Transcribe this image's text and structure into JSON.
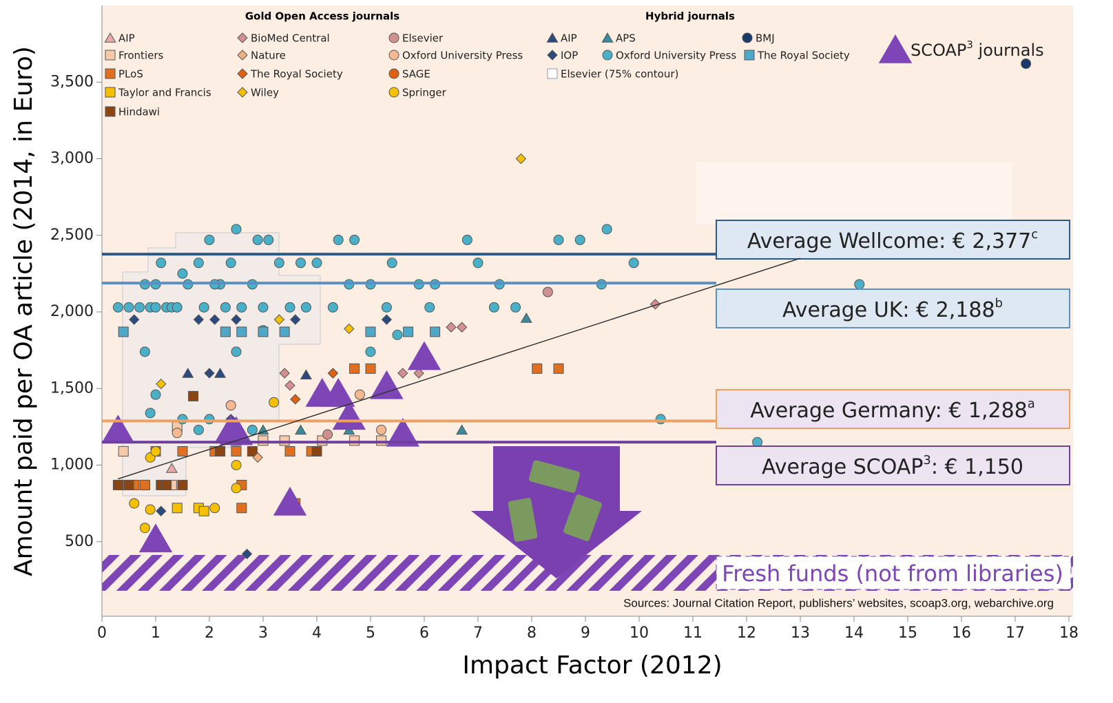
{
  "chart_data": {
    "type": "scatter",
    "y_label": "Amount paid per OA article (2014, in Euro)",
    "x_label": "Impact Factor (2012)",
    "xlim": [
      0,
      18
    ],
    "xticks": [
      0,
      1,
      2,
      3,
      4,
      5,
      6,
      7,
      8,
      9,
      10,
      11,
      12,
      13,
      14,
      15,
      16,
      17,
      18
    ],
    "ylim": [
      0,
      4000
    ],
    "yticks": [
      500,
      {
        "value": 1000,
        "label": "1,000"
      },
      {
        "value": 1500,
        "label": "1,500"
      },
      {
        "value": 2000,
        "label": "2,000"
      },
      {
        "value": 2500,
        "label": "2,500"
      },
      {
        "value": 3000,
        "label": "3,000"
      },
      {
        "value": 3500,
        "label": "3,500"
      }
    ],
    "legend_groups": [
      "Gold Open Access journals",
      "Hybrid journals"
    ],
    "series": [
      {
        "name": "AIP",
        "marker": "triangle",
        "color": "#e8a8a8",
        "x": [
          1.3
        ],
        "y": [
          980
        ]
      },
      {
        "name": "Frontiers",
        "marker": "square",
        "color": "#f6c9a8",
        "x": [
          0.4,
          1.4,
          2.5,
          3.0,
          3.4,
          4.1,
          4.7,
          5.2,
          0.8,
          1.3
        ],
        "y": [
          1090,
          1250,
          1160,
          1160,
          1160,
          1160,
          1160,
          1160,
          870,
          870
        ]
      },
      {
        "name": "PLoS",
        "marker": "square",
        "color": "#e07020",
        "x": [
          0.4,
          0.6,
          0.8,
          1.0,
          1.5,
          2.1,
          2.5,
          3.5,
          3.9,
          4.7,
          5.0,
          8.1,
          8.5,
          3.6,
          2.6,
          2.6
        ],
        "y": [
          870,
          870,
          870,
          1090,
          1090,
          1090,
          1090,
          1090,
          1090,
          1630,
          1630,
          1630,
          1630,
          750,
          720,
          870
        ]
      },
      {
        "name": "Taylor and Francis",
        "marker": "square",
        "color": "#f5c000",
        "x": [
          1.4,
          1.8,
          1.9
        ],
        "y": [
          720,
          720,
          700
        ]
      },
      {
        "name": "Hindawi",
        "marker": "square",
        "color": "#8b4513",
        "x": [
          0.3,
          0.5,
          1.1,
          1.2,
          1.5,
          1.7,
          2.2,
          2.8,
          4.0
        ],
        "y": [
          870,
          870,
          870,
          870,
          870,
          1450,
          1090,
          1090,
          1090
        ]
      },
      {
        "name": "BioMed Central",
        "marker": "diamond",
        "color": "#d49090",
        "x": [
          3.4,
          4.3,
          5.6,
          5.9,
          6.5,
          6.7,
          10.3,
          3.5
        ],
        "y": [
          1600,
          1600,
          1600,
          1600,
          1900,
          1900,
          2050,
          1520
        ]
      },
      {
        "name": "Nature",
        "marker": "diamond",
        "color": "#f0b080",
        "x": [
          2.9
        ],
        "y": [
          1050
        ]
      },
      {
        "name": "The Royal Society",
        "marker": "diamond",
        "color": "#e06010",
        "x": [
          3.6,
          4.3
        ],
        "y": [
          1430,
          1600
        ]
      },
      {
        "name": "Wiley",
        "marker": "diamond",
        "color": "#f5c000",
        "x": [
          1.1,
          3.3,
          4.6,
          7.8
        ],
        "y": [
          1530,
          1950,
          1890,
          3000
        ]
      },
      {
        "name": "Elsevier",
        "marker": "circle",
        "color": "#d09090",
        "x": [
          8.3,
          4.2
        ],
        "y": [
          2130,
          1200
        ]
      },
      {
        "name": "Oxford University Press",
        "marker": "circle",
        "color": "#f5b890",
        "x": [
          2.4,
          4.8,
          1.4,
          5.2
        ],
        "y": [
          1390,
          1460,
          1210,
          1230
        ]
      },
      {
        "name": "SAGE",
        "marker": "circle",
        "color": "#e06010",
        "x": [],
        "y": []
      },
      {
        "name": "Springer",
        "marker": "circle",
        "color": "#f5c000",
        "x": [
          0.6,
          0.8,
          0.9,
          0.9,
          1.0,
          2.1,
          2.5,
          2.5,
          3.2
        ],
        "y": [
          750,
          590,
          710,
          1050,
          1090,
          720,
          1000,
          850,
          1410
        ]
      },
      {
        "name": "AIP",
        "marker": "triangle",
        "color": "#2a4a80",
        "x": [
          1.6,
          2.2,
          3.8
        ],
        "y": [
          1600,
          1600,
          1590
        ]
      },
      {
        "name": "IOP",
        "marker": "diamond",
        "color": "#2a4a80",
        "x": [
          0.6,
          1.1,
          1.8,
          2.0,
          2.1,
          2.4,
          2.5,
          3.6,
          5.3,
          2.7
        ],
        "y": [
          1950,
          700,
          1950,
          1600,
          1950,
          1300,
          1950,
          1950,
          1950,
          420
        ]
      },
      {
        "name": "Elsevier (75% contour)",
        "marker": "contour",
        "color": "#8a9ab0",
        "x": [],
        "y": []
      },
      {
        "name": "APS",
        "marker": "triangle",
        "color": "#3a8a9a",
        "x": [
          3.0,
          3.7,
          4.6,
          6.7,
          7.9
        ],
        "y": [
          1230,
          1230,
          1230,
          1230,
          1960
        ]
      },
      {
        "name": "Oxford University Press",
        "marker": "circle",
        "color": "#4ab0c8",
        "x": [
          0.3,
          0.5,
          0.7,
          0.8,
          0.9,
          1.0,
          1.0,
          1.1,
          1.2,
          1.3,
          0.8,
          1.0,
          1.4,
          1.5,
          1.6,
          1.8,
          1.9,
          2.0,
          2.2,
          2.3,
          2.4,
          2.5,
          2.6,
          2.8,
          2.9,
          3.0,
          3.1,
          3.3,
          3.5,
          3.7,
          3.8,
          4.0,
          4.3,
          4.4,
          4.6,
          4.7,
          5.0,
          5.3,
          5.4,
          5.5,
          5.9,
          6.2,
          6.8,
          7.0,
          7.3,
          7.4,
          7.7,
          8.5,
          8.9,
          9.3,
          9.4,
          9.9,
          10.4,
          12.2,
          14.1,
          2.0,
          1.5,
          2.5,
          3.0,
          5.0,
          2.8,
          0.9,
          1.8,
          6.1,
          2.1
        ],
        "y": [
          2030,
          2030,
          2030,
          2180,
          2030,
          2030,
          2180,
          2320,
          2030,
          2030,
          1740,
          1460,
          2030,
          2250,
          2180,
          2320,
          2030,
          2470,
          2180,
          2030,
          2320,
          2540,
          2030,
          2180,
          2470,
          2030,
          2470,
          2320,
          2030,
          2320,
          2030,
          2320,
          2030,
          2470,
          2180,
          2470,
          2180,
          2030,
          2320,
          1850,
          2180,
          2180,
          2470,
          2320,
          2030,
          2180,
          2030,
          2470,
          2470,
          2180,
          2540,
          2320,
          1300,
          1150,
          2180,
          1300,
          1300,
          1740,
          1880,
          1740,
          1230,
          1340,
          1230,
          2030,
          2180
        ]
      },
      {
        "name": "BMJ",
        "marker": "circle",
        "color": "#1a3a6a",
        "x": [
          17.2
        ],
        "y": [
          3620
        ]
      },
      {
        "name": "The Royal Society",
        "marker": "square",
        "color": "#50a8c8",
        "x": [
          0.4,
          2.3,
          2.6,
          3.0,
          3.4,
          5.0,
          5.7,
          6.2
        ],
        "y": [
          1870,
          1870,
          1870,
          1870,
          1870,
          1870,
          1870,
          1870
        ]
      },
      {
        "name_parts": [
          "SCOAP",
          "3",
          " journals"
        ],
        "marker": "big-triangle",
        "color": "#7d45b5",
        "x": [
          0.3,
          1.0,
          2.4,
          2.5,
          3.5,
          4.1,
          4.4,
          4.6,
          5.3,
          5.6,
          6.0
        ],
        "y": [
          1230,
          520,
          1230,
          1220,
          760,
          1470,
          1470,
          1320,
          1520,
          1210,
          1710
        ]
      }
    ],
    "trend_line": {
      "x": [
        0.3,
        13
      ],
      "y": [
        910,
        2350
      ]
    },
    "reference_lines": [
      {
        "value": 2377,
        "color": "#2a5a8a",
        "label_parts": [
          "Average Wellcome: € 2,377",
          "c"
        ]
      },
      {
        "value": 2188,
        "color": "#5a90c8",
        "label_parts": [
          "Average UK: € 2,188",
          "b"
        ]
      },
      {
        "value": 1288,
        "color": "#f0a060",
        "label_parts": [
          "Average Germany: € 1,288",
          "a"
        ]
      },
      {
        "value": 1150,
        "color": "#7040a0",
        "label_parts": [
          "Average SCOAP",
          "3",
          ": € 1,150"
        ]
      }
    ],
    "band_label": "Fresh funds (not from libraries)",
    "source": "Sources: Journal Citation Report, publishers’ websites, scoap3.org, webarchive.org"
  }
}
